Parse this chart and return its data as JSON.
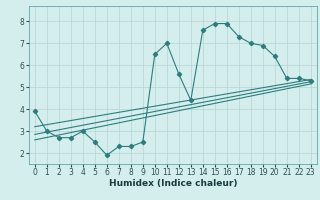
{
  "xlabel": "Humidex (Indice chaleur)",
  "bg_color": "#d4eeee",
  "line_color": "#2d7d7d",
  "grid_color": "#b8d4d4",
  "xlim": [
    -0.5,
    23.5
  ],
  "ylim": [
    1.5,
    8.7
  ],
  "xticks": [
    0,
    1,
    2,
    3,
    4,
    5,
    6,
    7,
    8,
    9,
    10,
    11,
    12,
    13,
    14,
    15,
    16,
    17,
    18,
    19,
    20,
    21,
    22,
    23
  ],
  "yticks": [
    2,
    3,
    4,
    5,
    6,
    7,
    8
  ],
  "line1_x": [
    0,
    1,
    2,
    3,
    4,
    5,
    6,
    7,
    8,
    9,
    10,
    11,
    12,
    13,
    14,
    15,
    16,
    17,
    18,
    19,
    20,
    21,
    22,
    23
  ],
  "line1_y": [
    3.9,
    3.0,
    2.7,
    2.7,
    3.0,
    2.5,
    1.9,
    2.3,
    2.3,
    2.5,
    6.5,
    7.0,
    5.6,
    4.4,
    7.6,
    7.9,
    7.9,
    7.3,
    7.0,
    6.9,
    6.4,
    5.4,
    5.4,
    5.3
  ],
  "line2_x": [
    0,
    23
  ],
  "line2_y": [
    3.2,
    5.35
  ],
  "line3_x": [
    0,
    23
  ],
  "line3_y": [
    2.85,
    5.25
  ],
  "line4_x": [
    0,
    23
  ],
  "line4_y": [
    2.6,
    5.15
  ],
  "tick_fontsize": 5.5,
  "xlabel_fontsize": 6.5
}
